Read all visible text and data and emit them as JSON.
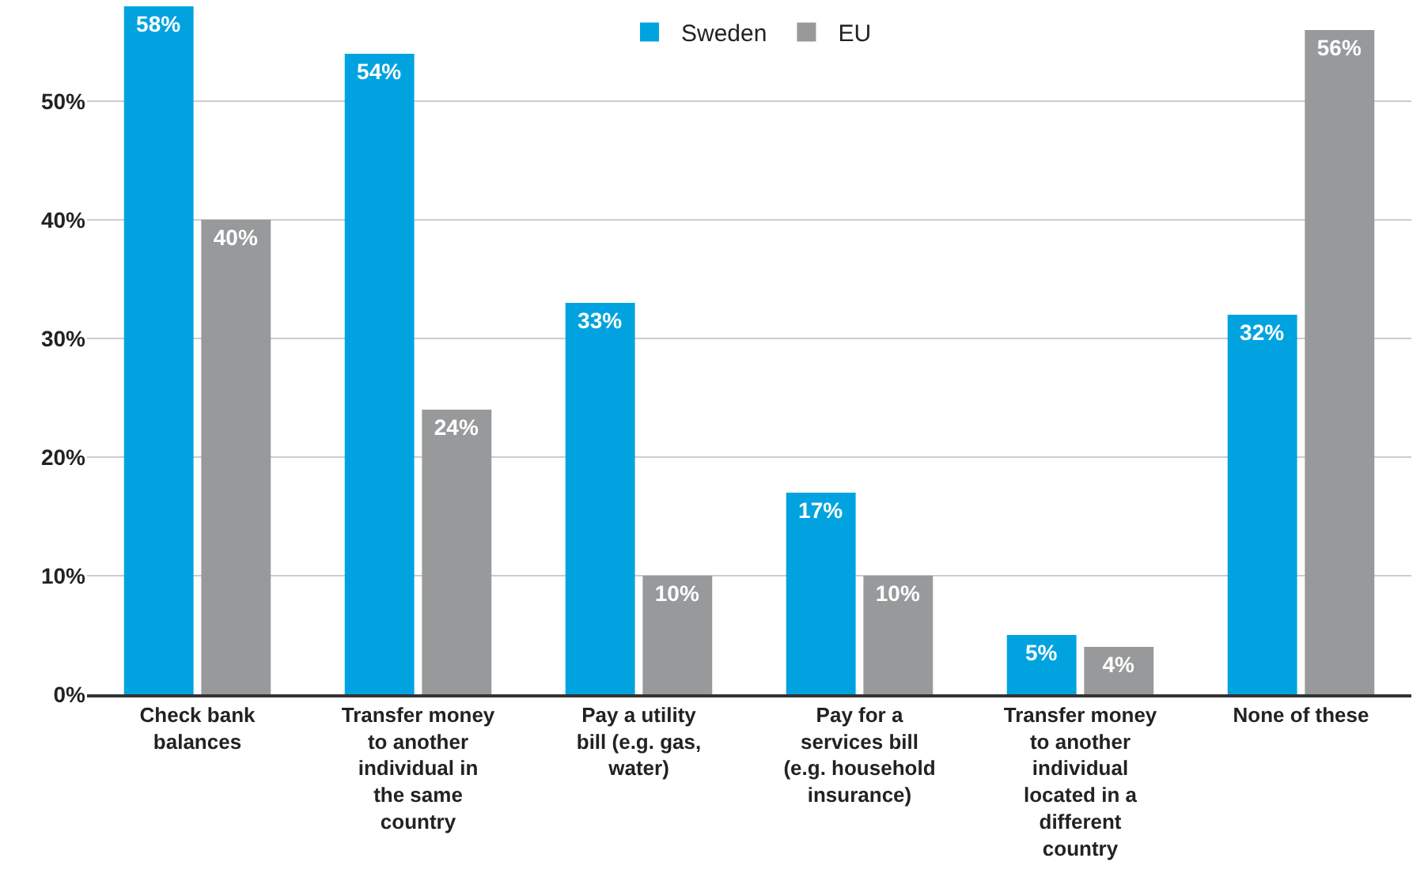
{
  "chart_data": {
    "type": "bar",
    "categories": [
      "Check bank balances",
      "Transfer money to another individual in the same country",
      "Pay a utility bill (e.g. gas, water)",
      "Pay for a services bill (e.g. household insurance)",
      "Transfer money to another individual located in a different country",
      "None of these"
    ],
    "series": [
      {
        "name": "Sweden",
        "color": "#00a3e0",
        "values": [
          58,
          54,
          33,
          17,
          5,
          32
        ],
        "value_labels": [
          "58%",
          "54%",
          "33%",
          "17%",
          "5%",
          "32%"
        ]
      },
      {
        "name": "EU",
        "color": "#97999b",
        "values": [
          40,
          24,
          10,
          10,
          4,
          56
        ],
        "value_labels": [
          "40%",
          "24%",
          "10%",
          "10%",
          "4%",
          "56%"
        ]
      }
    ],
    "ylim": [
      0,
      58
    ],
    "yticks": [
      {
        "value": 0,
        "label": "0%"
      },
      {
        "value": 10,
        "label": "10%"
      },
      {
        "value": 20,
        "label": "20%"
      },
      {
        "value": 30,
        "label": "30%"
      },
      {
        "value": 40,
        "label": "40%"
      },
      {
        "value": 50,
        "label": "50%"
      }
    ],
    "grid": "y",
    "legend": "top"
  }
}
